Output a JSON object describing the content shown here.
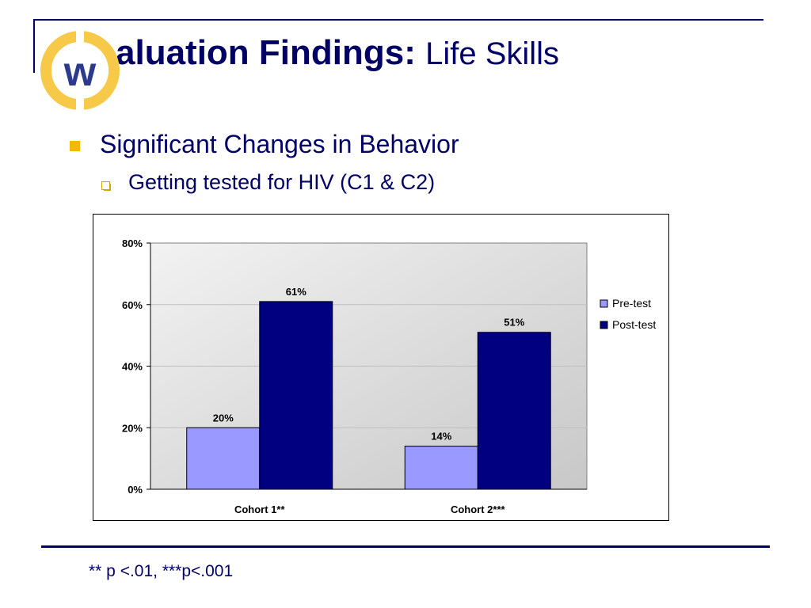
{
  "slide": {
    "title_bold": "aluation Findings:",
    "title_light": "Life Skills",
    "bullet_1": "Significant Changes in Behavior",
    "bullet_2": "Getting tested for HIV (C1 & C2)",
    "footnote": "** p <.01, ***p<.001",
    "logo_letter": "w"
  },
  "colors": {
    "navy": "#000066",
    "bullet_gold": "#f5b800",
    "logo_ring": "#f7c948",
    "pre_test": "#9999ff",
    "post_test": "#000080"
  },
  "chart_data": {
    "type": "bar",
    "categories": [
      "Cohort 1**",
      "Cohort 2***"
    ],
    "series": [
      {
        "name": "Pre-test",
        "values": [
          20,
          14
        ],
        "labels": [
          "20%",
          "14%"
        ]
      },
      {
        "name": "Post-test",
        "values": [
          61,
          51
        ],
        "labels": [
          "61%",
          "51%"
        ]
      }
    ],
    "ylim": [
      0,
      80
    ],
    "yticks": [
      0,
      20,
      40,
      60,
      80
    ],
    "ytick_labels": [
      "0%",
      "20%",
      "40%",
      "60%",
      "80%"
    ],
    "legend_position": "right",
    "grid": true
  }
}
